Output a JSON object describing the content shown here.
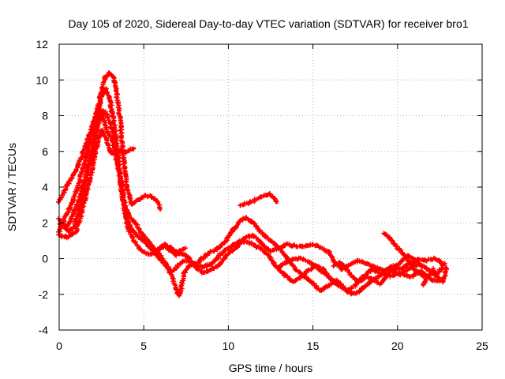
{
  "chart_data": {
    "type": "scatter",
    "title": "Day 105 of 2020, Sidereal Day-to-day VTEC variation (SDTVAR) for receiver bro1",
    "xlabel": "GPS time / hours",
    "ylabel": "SDTVAR / TECUs",
    "xlim": [
      0,
      25
    ],
    "ylim": [
      -4,
      12
    ],
    "xticks": [
      0,
      5,
      10,
      15,
      20,
      25
    ],
    "yticks": [
      -4,
      -2,
      0,
      2,
      4,
      6,
      8,
      10,
      12
    ],
    "grid": true,
    "marker": "plus",
    "color": "#ff0000",
    "series": [
      {
        "name": "track 1",
        "points": [
          [
            0,
            3.2
          ],
          [
            0.4,
            4.0
          ],
          [
            0.8,
            4.6
          ],
          [
            1.2,
            5.4
          ],
          [
            1.6,
            6.4
          ],
          [
            2.0,
            7.6
          ],
          [
            2.3,
            8.5
          ],
          [
            2.5,
            9.3
          ],
          [
            2.7,
            10.1
          ],
          [
            2.95,
            10.4
          ],
          [
            3.2,
            10.2
          ],
          [
            3.4,
            9.2
          ],
          [
            3.6,
            7.8
          ],
          [
            3.8,
            5.6
          ],
          [
            4.0,
            4.0
          ],
          [
            4.3,
            3.0
          ],
          [
            4.7,
            3.3
          ],
          [
            5.0,
            3.5
          ],
          [
            5.4,
            3.5
          ],
          [
            5.8,
            3.2
          ],
          [
            6.0,
            2.7
          ]
        ]
      },
      {
        "name": "track 2",
        "points": [
          [
            0,
            1.5
          ],
          [
            0.3,
            2.2
          ],
          [
            0.7,
            3.0
          ],
          [
            1.1,
            4.0
          ],
          [
            1.5,
            5.4
          ],
          [
            1.9,
            6.8
          ],
          [
            2.2,
            8.0
          ],
          [
            2.5,
            9.0
          ],
          [
            2.75,
            9.5
          ],
          [
            3.0,
            8.9
          ],
          [
            3.2,
            7.8
          ],
          [
            3.4,
            6.4
          ],
          [
            3.6,
            4.6
          ],
          [
            3.8,
            3.2
          ],
          [
            4.1,
            2.4
          ],
          [
            4.5,
            2.0
          ],
          [
            4.9,
            1.4
          ],
          [
            5.3,
            0.9
          ],
          [
            5.7,
            0.5
          ],
          [
            6.1,
            0.0
          ],
          [
            6.5,
            -0.6
          ],
          [
            6.8,
            -1.4
          ],
          [
            7.1,
            -2.1
          ],
          [
            7.4,
            -0.8
          ],
          [
            7.7,
            -0.4
          ],
          [
            8.2,
            -0.2
          ],
          [
            8.8,
            0.3
          ],
          [
            9.3,
            0.5
          ],
          [
            9.8,
            0.9
          ],
          [
            10.2,
            1.5
          ],
          [
            10.6,
            2.0
          ],
          [
            11.0,
            2.3
          ],
          [
            11.5,
            2.0
          ],
          [
            12.0,
            1.4
          ],
          [
            12.5,
            1.0
          ],
          [
            13.0,
            0.6
          ],
          [
            13.5,
            0.0
          ],
          [
            14.0,
            -0.6
          ],
          [
            14.5,
            -1.0
          ],
          [
            15.0,
            -1.4
          ],
          [
            15.4,
            -1.8
          ],
          [
            15.9,
            -1.5
          ],
          [
            16.4,
            -1.2
          ],
          [
            16.9,
            -1.7
          ],
          [
            17.3,
            -2.0
          ],
          [
            17.8,
            -1.8
          ],
          [
            18.4,
            -1.3
          ],
          [
            19.0,
            -0.9
          ],
          [
            19.6,
            -0.6
          ],
          [
            20.2,
            -0.9
          ],
          [
            20.8,
            -1.0
          ],
          [
            21.4,
            -0.7
          ],
          [
            22.0,
            -1.2
          ],
          [
            22.6,
            -1.3
          ]
        ]
      },
      {
        "name": "track 3",
        "points": [
          [
            0,
            2.2
          ],
          [
            0.3,
            1.8
          ],
          [
            0.6,
            1.5
          ],
          [
            0.9,
            1.8
          ],
          [
            1.2,
            2.8
          ],
          [
            1.5,
            4.0
          ],
          [
            1.8,
            5.4
          ],
          [
            2.1,
            6.9
          ],
          [
            2.35,
            8.4
          ],
          [
            2.6,
            8.0
          ],
          [
            2.85,
            7.0
          ],
          [
            3.1,
            6.8
          ],
          [
            3.4,
            5.5
          ],
          [
            3.7,
            4.0
          ],
          [
            4.0,
            2.3
          ],
          [
            4.3,
            1.6
          ],
          [
            4.6,
            1.3
          ],
          [
            5.0,
            1.0
          ],
          [
            5.4,
            0.6
          ],
          [
            5.8,
            0.2
          ],
          [
            6.2,
            -0.3
          ],
          [
            6.6,
            -0.8
          ],
          [
            7.0,
            -0.4
          ],
          [
            7.4,
            -0.1
          ],
          [
            8.0,
            -0.3
          ],
          [
            8.5,
            -0.5
          ],
          [
            9.0,
            -0.3
          ],
          [
            9.6,
            0.3
          ],
          [
            10.2,
            0.7
          ],
          [
            10.7,
            1.0
          ],
          [
            11.2,
            0.9
          ],
          [
            11.8,
            0.6
          ],
          [
            12.3,
            0.3
          ],
          [
            12.8,
            -0.4
          ],
          [
            13.3,
            -0.9
          ],
          [
            13.8,
            -1.3
          ],
          [
            14.3,
            -1.0
          ],
          [
            14.8,
            -0.6
          ],
          [
            15.2,
            -0.4
          ],
          [
            15.6,
            -0.6
          ],
          [
            16.0,
            -1.1
          ],
          [
            16.5,
            -1.5
          ],
          [
            17.0,
            -1.8
          ],
          [
            17.5,
            -1.5
          ],
          [
            18.0,
            -1.0
          ],
          [
            18.5,
            -0.6
          ],
          [
            19.0,
            -0.8
          ],
          [
            19.6,
            -1.0
          ],
          [
            20.2,
            -0.8
          ],
          [
            20.8,
            -0.5
          ],
          [
            21.3,
            -0.3
          ],
          [
            21.8,
            -0.6
          ],
          [
            22.3,
            -1.0
          ],
          [
            22.8,
            -0.2
          ]
        ]
      },
      {
        "name": "track 4",
        "points": [
          [
            0,
            2.0
          ],
          [
            0.4,
            1.7
          ],
          [
            0.8,
            2.4
          ],
          [
            1.2,
            3.4
          ],
          [
            1.6,
            4.8
          ],
          [
            2.0,
            6.0
          ],
          [
            2.3,
            7.5
          ],
          [
            2.6,
            8.3
          ],
          [
            2.85,
            8.0
          ],
          [
            3.1,
            7.3
          ],
          [
            3.3,
            6.6
          ],
          [
            3.5,
            5.5
          ],
          [
            3.7,
            3.8
          ],
          [
            3.9,
            2.5
          ],
          [
            4.1,
            1.6
          ],
          [
            4.4,
            1.0
          ],
          [
            4.7,
            0.6
          ],
          [
            5.0,
            0.4
          ],
          [
            5.4,
            0.2
          ],
          [
            5.8,
            0.5
          ],
          [
            6.2,
            0.8
          ],
          [
            6.6,
            0.6
          ],
          [
            7.0,
            0.3
          ],
          [
            7.5,
            0.2
          ],
          [
            8.0,
            -0.4
          ],
          [
            8.5,
            -0.8
          ],
          [
            9.0,
            -0.6
          ],
          [
            9.5,
            -0.3
          ],
          [
            10.0,
            0.3
          ],
          [
            10.5,
            0.6
          ],
          [
            11.0,
            1.2
          ],
          [
            11.5,
            1.3
          ],
          [
            12.0,
            0.8
          ],
          [
            12.5,
            0.4
          ],
          [
            13.0,
            0.6
          ],
          [
            13.5,
            0.8
          ],
          [
            14.0,
            0.7
          ],
          [
            14.5,
            0.7
          ],
          [
            15.0,
            0.8
          ],
          [
            15.5,
            0.6
          ],
          [
            16.0,
            0.3
          ],
          [
            16.3,
            -0.2
          ],
          [
            16.7,
            -0.6
          ],
          [
            17.2,
            -0.3
          ],
          [
            17.7,
            -0.1
          ],
          [
            18.2,
            -0.3
          ],
          [
            18.7,
            -0.5
          ],
          [
            19.2,
            -0.7
          ],
          [
            19.7,
            -0.4
          ],
          [
            20.2,
            -0.6
          ],
          [
            20.7,
            -0.3
          ],
          [
            21.2,
            0.0
          ],
          [
            21.7,
            -0.1
          ],
          [
            22.2,
            0.0
          ],
          [
            22.7,
            -0.3
          ]
        ]
      },
      {
        "name": "track 5",
        "points": [
          [
            0,
            1.3
          ],
          [
            0.5,
            1.2
          ],
          [
            1.0,
            1.5
          ],
          [
            1.5,
            3.2
          ],
          [
            1.9,
            4.8
          ],
          [
            2.2,
            6.2
          ],
          [
            2.5,
            7.2
          ],
          [
            2.75,
            6.8
          ],
          [
            3.0,
            6.0
          ],
          [
            3.3,
            5.8
          ],
          [
            3.6,
            6.1
          ],
          [
            3.9,
            5.9
          ],
          [
            4.2,
            6.1
          ],
          [
            4.5,
            6.2
          ]
        ]
      },
      {
        "name": "track 6",
        "points": [
          [
            5.6,
            0.3
          ],
          [
            6.1,
            0.7
          ],
          [
            6.5,
            0.5
          ],
          [
            6.9,
            0.2
          ],
          [
            7.2,
            0.5
          ],
          [
            7.5,
            0.6
          ]
        ]
      },
      {
        "name": "track 7",
        "points": [
          [
            10.7,
            3.0
          ],
          [
            11.2,
            3.1
          ],
          [
            11.6,
            3.3
          ],
          [
            12.0,
            3.5
          ],
          [
            12.4,
            3.6
          ],
          [
            12.7,
            3.4
          ],
          [
            12.9,
            3.1
          ]
        ]
      },
      {
        "name": "track 8",
        "points": [
          [
            13.0,
            -0.5
          ],
          [
            13.4,
            -0.2
          ],
          [
            13.9,
            0.0
          ],
          [
            14.3,
            0.0
          ],
          [
            14.8,
            -0.2
          ],
          [
            15.2,
            -0.5
          ],
          [
            15.6,
            -0.8
          ],
          [
            16.0,
            -1.1
          ]
        ]
      },
      {
        "name": "track 9",
        "points": [
          [
            19.2,
            1.4
          ],
          [
            19.6,
            1.1
          ],
          [
            20.0,
            0.6
          ],
          [
            20.4,
            0.2
          ],
          [
            20.8,
            -0.3
          ],
          [
            21.2,
            -0.8
          ],
          [
            21.6,
            -1.0
          ]
        ]
      },
      {
        "name": "track 10",
        "points": [
          [
            21.5,
            -1.5
          ],
          [
            21.8,
            -1.0
          ],
          [
            22.1,
            -0.6
          ],
          [
            22.4,
            -1.1
          ],
          [
            22.7,
            -1.3
          ],
          [
            22.9,
            -0.4
          ]
        ]
      },
      {
        "name": "track 11",
        "points": [
          [
            16.2,
            -0.4
          ],
          [
            16.6,
            -0.2
          ],
          [
            17.0,
            -0.6
          ],
          [
            17.4,
            -1.1
          ],
          [
            17.8,
            -1.3
          ],
          [
            18.2,
            -1.0
          ],
          [
            18.6,
            -1.2
          ],
          [
            19.0,
            -1.4
          ],
          [
            19.4,
            -0.9
          ],
          [
            19.8,
            -0.5
          ],
          [
            20.2,
            -0.2
          ],
          [
            20.6,
            0.2
          ],
          [
            21.0,
            -0.1
          ],
          [
            21.4,
            -0.4
          ]
        ]
      }
    ]
  }
}
